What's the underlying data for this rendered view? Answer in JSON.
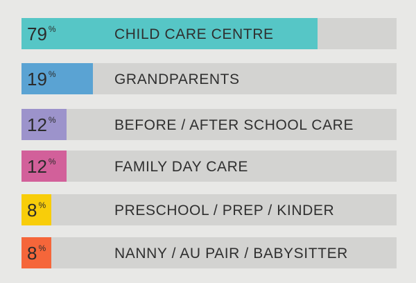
{
  "chart_data": {
    "type": "bar",
    "orientation": "horizontal",
    "categories": [
      "CHILD CARE CENTRE",
      "GRANDPARENTS",
      "BEFORE / AFTER SCHOOL CARE",
      "FAMILY DAY CARE",
      "PRESCHOOL / PREP / KINDER",
      "NANNY / AU PAIR / BABYSITTER"
    ],
    "values": [
      79,
      19,
      12,
      12,
      8,
      8
    ],
    "value_labels": [
      "79",
      "19",
      "12",
      "12",
      "8",
      "8"
    ],
    "unit": "%",
    "xlim": [
      0,
      100
    ],
    "grid": false,
    "colors": [
      "#56c6c6",
      "#5aa3d3",
      "#9c93cb",
      "#d2609a",
      "#f8cd0a",
      "#f5663a"
    ],
    "track_color": "#d3d3d1",
    "background_color": "#e8e8e6"
  }
}
